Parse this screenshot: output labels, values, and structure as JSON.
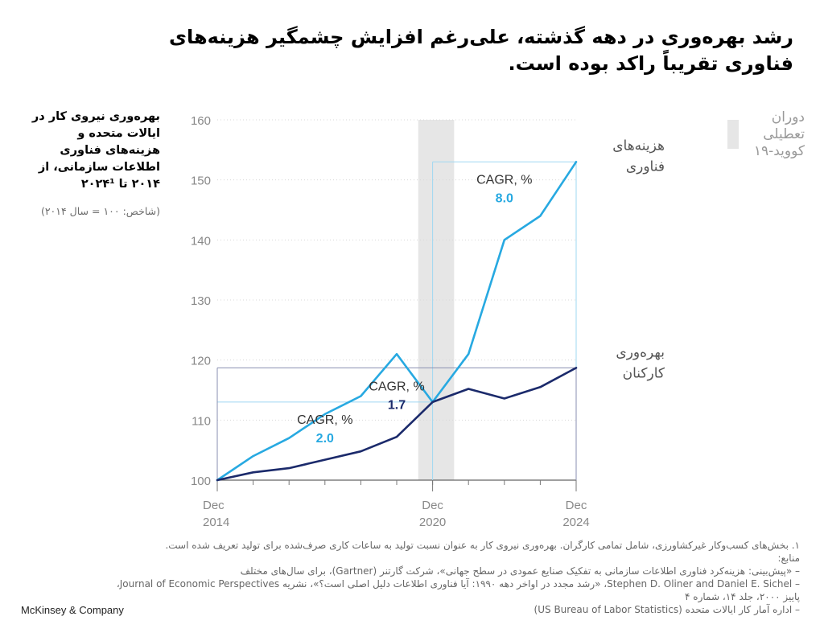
{
  "headline": "رشد بهره‌وری در دهه گذشته، علی‌رغم افزایش چشمگیر هزینه‌های فناوری تقریباً راکد بوده است.",
  "subtitle": "بهره‌وری نیروی کار در ایالات متحده و هزینه‌های فناوری اطلاعات سازمانی، از ۲۰۱۴ تا ۲۰۲۴¹",
  "index_note": "(شاخص: ۱۰۰ = سال ۲۰۱۴)",
  "chart_data": {
    "type": "line",
    "x": [
      2014,
      2015,
      2016,
      2017,
      2018,
      2019,
      2020,
      2021,
      2022,
      2023,
      2024
    ],
    "x_tick_values": [
      2014,
      2020,
      2024
    ],
    "x_tick_labels": [
      [
        "Dec",
        "2014"
      ],
      [
        "Dec",
        "2020"
      ],
      [
        "Dec",
        "2024"
      ]
    ],
    "yticks": [
      100,
      110,
      120,
      130,
      140,
      150,
      160
    ],
    "ylim": [
      100,
      160
    ],
    "series": [
      {
        "name": "هزینه‌های فناوری",
        "key": "tech",
        "color": "#27a9e1",
        "values": [
          100,
          104,
          107,
          111,
          114,
          121,
          113,
          121,
          140,
          144,
          153
        ]
      },
      {
        "name": "بهره‌وری کارکنان",
        "key": "prod",
        "color": "#1b2a6b",
        "values": [
          100,
          101.3,
          102,
          103.4,
          104.8,
          107.2,
          113,
          115.2,
          113.6,
          115.5,
          118.7
        ]
      }
    ],
    "covid_band": {
      "label": "دوران تعطیلی کووید-۱۹",
      "label_lines": [
        "دوران",
        "تعطیلی",
        "کووید-۱۹"
      ],
      "start": 2019.6,
      "end": 2020.6,
      "color": "#e6e6e6"
    },
    "cagr_annotations": [
      {
        "label": "CAGR, %",
        "value": "2.0",
        "series": "tech",
        "period": [
          2014,
          2020
        ],
        "value_color": "#27a9e1"
      },
      {
        "label": "CAGR, %",
        "value": "8.0",
        "series": "tech",
        "period": [
          2020,
          2024
        ],
        "value_color": "#27a9e1"
      },
      {
        "label": "CAGR, %",
        "value": "1.7",
        "series": "prod",
        "period": [
          2014,
          2024
        ],
        "value_color": "#1b2a6b"
      }
    ],
    "series_labels": [
      {
        "series": "tech",
        "lines": [
          "هزینه‌های",
          "فناوری"
        ]
      },
      {
        "series": "prod",
        "lines": [
          "بهره‌وری",
          "کارکنان"
        ]
      }
    ]
  },
  "footnotes": [
    "۱. بخش‌های کسب‌وکار غیرکشاورزی، شامل تمامی کارگران. بهره‌وری نیروی کار به عنوان نسبت تولید به ساعات کاری صرف‌شده برای تولید تعریف شده است.",
    "منابع:",
    "– «پیش‌بینی: هزینه‌کرد فناوری اطلاعات سازمانی به تفکیک صنایع عمودی در سطح جهانی»، شرکت گارتنر (Gartner)، برای سال‌های مختلف",
    "– Stephen D. Oliner and Daniel E. Sichel، «رشد مجدد در اواخر دهه ۱۹۹۰: آیا فناوری اطلاعات دلیل اصلی است؟»، نشریه Journal of Economic Perspectives،",
    "پاییز ۲۰۰۰، جلد ۱۴، شماره ۴",
    "– اداره آمار کار ایالات متحده (US Bureau of Labor Statistics)"
  ],
  "brand": "McKinsey & Company"
}
